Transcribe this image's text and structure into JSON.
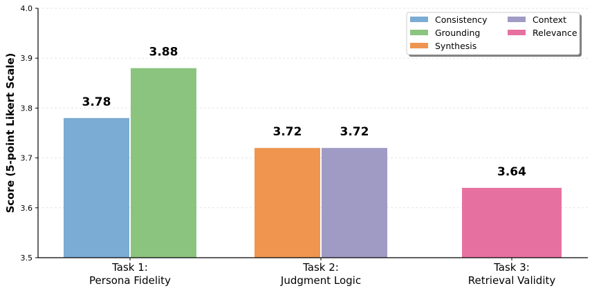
{
  "chart_data": {
    "type": "bar",
    "title": "",
    "xlabel": "",
    "ylabel": "Score (5-point Likert Scale)",
    "ylim": [
      3.5,
      4.0
    ],
    "yticks": [
      "3.5",
      "3.6",
      "3.7",
      "3.8",
      "3.9",
      "4.0"
    ],
    "grid": true,
    "legend_placement": "top-right",
    "categories": [
      [
        "Task 1:",
        "Persona Fidelity"
      ],
      [
        "Task 2:",
        "Judgment Logic"
      ],
      [
        "Task 3:",
        "Retrieval Validity"
      ]
    ],
    "series": [
      {
        "name": "Consistency",
        "color": "#7bacd3",
        "category": 0,
        "value": 3.78,
        "label": "3.78"
      },
      {
        "name": "Grounding",
        "color": "#8bc47f",
        "category": 0,
        "value": 3.88,
        "label": "3.88"
      },
      {
        "name": "Synthesis",
        "color": "#ef9550",
        "category": 1,
        "value": 3.72,
        "label": "3.72"
      },
      {
        "name": "Context",
        "color": "#9f9bc5",
        "category": 1,
        "value": 3.72,
        "label": "3.72"
      },
      {
        "name": "Relevance",
        "color": "#e671a0",
        "category": 2,
        "value": 3.64,
        "label": "3.64"
      }
    ]
  }
}
